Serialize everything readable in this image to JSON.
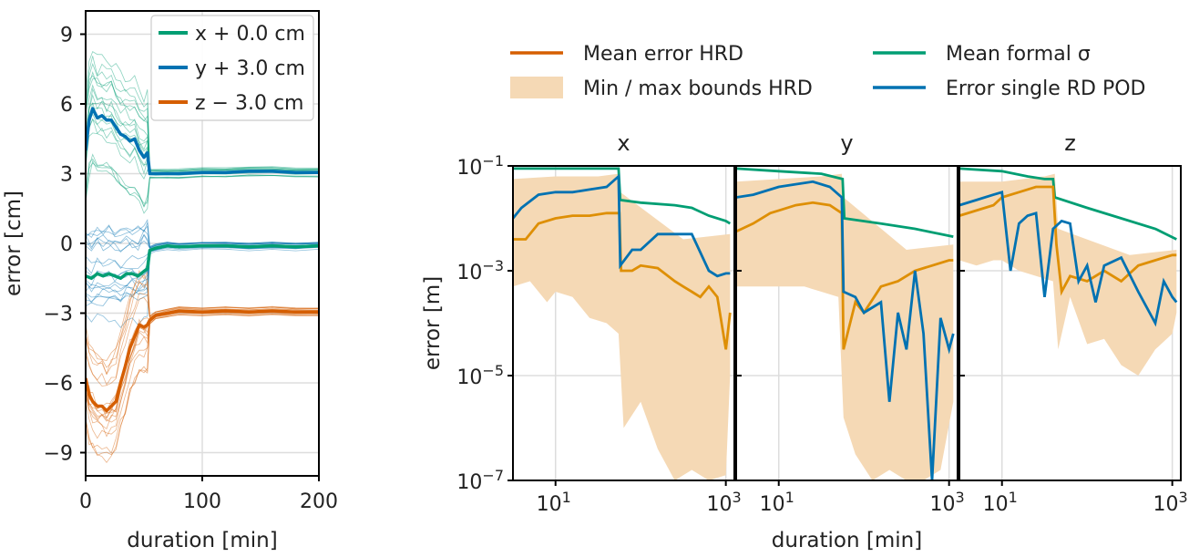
{
  "colors": {
    "green": "#009e73",
    "blue": "#0072b2",
    "orange": "#d55e00",
    "orange_mid": "#de8f05",
    "band": "#f5d9b5",
    "grid": "#dddddd",
    "axis": "#000000"
  },
  "chart_data": [
    {
      "type": "line",
      "id": "left",
      "xlabel": "duration [min]",
      "ylabel": "error [cm]",
      "xlim": [
        0,
        200
      ],
      "ylim": [
        -10,
        10
      ],
      "xticks": [
        0,
        100,
        200
      ],
      "xtick_labels": [
        "0",
        "100",
        "200"
      ],
      "yticks": [
        -9,
        -6,
        -3,
        0,
        3,
        6,
        9
      ],
      "ytick_labels": [
        "−9",
        "−6",
        "−3",
        "0",
        "3",
        "6",
        "9"
      ],
      "grid": true,
      "legend_position": "top-right",
      "series": [
        {
          "name": "x + 0.0 cm",
          "color": "#009e73",
          "x": [
            0,
            5,
            10,
            15,
            20,
            25,
            30,
            35,
            40,
            45,
            50,
            53,
            55,
            60,
            70,
            80,
            100,
            120,
            140,
            160,
            180,
            200
          ],
          "y": [
            -1.4,
            -1.5,
            -1.3,
            -1.4,
            -1.3,
            -1.4,
            -1.5,
            -1.3,
            -1.3,
            -1.4,
            -1.2,
            -1.1,
            -0.3,
            -0.2,
            -0.1,
            -0.15,
            -0.1,
            -0.1,
            -0.15,
            -0.1,
            -0.15,
            -0.1
          ]
        },
        {
          "name": "y + 3.0 cm",
          "color": "#0072b2",
          "x": [
            0,
            3,
            6,
            10,
            14,
            18,
            22,
            26,
            30,
            34,
            38,
            42,
            46,
            50,
            53,
            55,
            60,
            70,
            80,
            100,
            120,
            140,
            160,
            180,
            200
          ],
          "y": [
            4.0,
            5.3,
            5.8,
            5.4,
            5.5,
            5.3,
            5.3,
            5.0,
            4.7,
            4.6,
            4.4,
            4.5,
            4.0,
            3.7,
            3.9,
            3.0,
            3.0,
            3.0,
            3.0,
            3.05,
            3.05,
            3.1,
            3.1,
            3.05,
            3.05
          ]
        },
        {
          "name": "z − 3.0 cm",
          "color": "#d55e00",
          "x": [
            0,
            3,
            6,
            10,
            14,
            18,
            22,
            26,
            30,
            34,
            38,
            42,
            46,
            50,
            53,
            55,
            60,
            70,
            80,
            100,
            120,
            140,
            160,
            180,
            200
          ],
          "y": [
            -5.8,
            -6.5,
            -6.8,
            -7.0,
            -7.0,
            -7.2,
            -7.0,
            -6.8,
            -6.0,
            -5.3,
            -4.5,
            -4.0,
            -3.5,
            -3.6,
            -3.5,
            -3.3,
            -3.1,
            -3.0,
            -2.9,
            -2.95,
            -2.9,
            -2.95,
            -2.9,
            -2.95,
            -2.95
          ]
        }
      ],
      "ensemble": [
        {
          "color": "#0072b2",
          "spread": 2.0
        },
        {
          "color": "#009e73",
          "spread": 2.6
        },
        {
          "color": "#d55e00",
          "spread": 2.2
        }
      ]
    },
    {
      "type": "line",
      "id": "right",
      "xlabel": "duration [min]",
      "ylabel": "error [m]",
      "xscale": "log",
      "yscale": "log",
      "ylim_exp": [
        -7,
        -1
      ],
      "xlim_exp": [
        0.5,
        3.1
      ],
      "yticks_exp": [
        -7,
        -5,
        -3,
        -1
      ],
      "xticks_exp": [
        1,
        3
      ],
      "grid": true,
      "legend": [
        {
          "label": "Mean error HRD",
          "kind": "line",
          "color": "#d55e00"
        },
        {
          "label": "Min / max bounds HRD",
          "kind": "band",
          "color": "#f5d9b5"
        },
        {
          "label": "Mean formal σ",
          "kind": "line",
          "color": "#009e73"
        },
        {
          "label": "Error single RD POD",
          "kind": "line",
          "color": "#0072b2"
        }
      ],
      "panels": [
        {
          "title": "x",
          "mean_error": {
            "lx": [
              0.5,
              0.65,
              0.8,
              1.0,
              1.2,
              1.4,
              1.6,
              1.75,
              1.77,
              1.9,
              2.0,
              2.2,
              2.4,
              2.5,
              2.6,
              2.7,
              2.8,
              2.9,
              3.0,
              3.05
            ],
            "ly": [
              -2.4,
              -2.4,
              -2.1,
              -2.0,
              -1.95,
              -1.95,
              -1.9,
              -1.9,
              -3.0,
              -3.0,
              -2.9,
              -2.95,
              -3.2,
              -3.3,
              -3.4,
              -3.5,
              -3.3,
              -3.5,
              -4.5,
              -3.8
            ]
          },
          "formal": {
            "lx": [
              0.5,
              1.0,
              1.5,
              1.74,
              1.76,
              2.0,
              2.4,
              2.6,
              2.8,
              3.0,
              3.05
            ],
            "ly": [
              -1.05,
              -1.05,
              -1.05,
              -1.05,
              -1.65,
              -1.7,
              -1.75,
              -1.8,
              -1.95,
              -2.05,
              -2.1
            ]
          },
          "single": {
            "lx": [
              0.5,
              0.6,
              0.8,
              1.0,
              1.2,
              1.4,
              1.6,
              1.74,
              1.76,
              1.9,
              2.0,
              2.2,
              2.4,
              2.6,
              2.8,
              2.9,
              3.0,
              3.05
            ],
            "ly": [
              -2.0,
              -1.8,
              -1.55,
              -1.5,
              -1.5,
              -1.45,
              -1.4,
              -1.2,
              -2.9,
              -2.6,
              -2.6,
              -2.3,
              -2.3,
              -2.3,
              -3.0,
              -3.1,
              -3.05,
              -3.05
            ]
          },
          "band_upper": {
            "lx": [
              0.5,
              1.0,
              1.5,
              1.74,
              1.76,
              2.5,
              3.05
            ],
            "ly": [
              -1.25,
              -1.2,
              -1.2,
              -1.15,
              -1.5,
              -2.4,
              -2.3
            ]
          },
          "band_lower": {
            "lx": [
              0.5,
              0.7,
              0.9,
              1.0,
              1.2,
              1.4,
              1.6,
              1.74,
              1.8,
              2.0,
              2.2,
              2.4,
              2.6,
              2.8,
              3.0,
              3.05
            ],
            "ly": [
              -3.3,
              -3.2,
              -3.6,
              -3.4,
              -3.5,
              -3.9,
              -4.0,
              -4.2,
              -6.0,
              -5.5,
              -6.4,
              -7.0,
              -6.8,
              -7.0,
              -6.9,
              -5.0
            ]
          }
        },
        {
          "title": "y",
          "mean_error": {
            "lx": [
              0.5,
              0.7,
              0.9,
              1.0,
              1.2,
              1.4,
              1.6,
              1.74,
              1.76,
              1.9,
              2.0,
              2.2,
              2.4,
              2.6,
              2.8,
              3.0,
              3.05
            ],
            "ly": [
              -2.25,
              -2.1,
              -1.9,
              -1.85,
              -1.75,
              -1.7,
              -1.75,
              -1.9,
              -4.5,
              -3.6,
              -3.8,
              -3.3,
              -3.2,
              -3.0,
              -2.9,
              -2.8,
              -2.8
            ]
          },
          "formal": {
            "lx": [
              0.5,
              1.0,
              1.5,
              1.75,
              1.77,
              2.2,
              2.6,
              2.9,
              3.05
            ],
            "ly": [
              -1.05,
              -1.1,
              -1.15,
              -1.25,
              -2.0,
              -2.1,
              -2.2,
              -2.3,
              -2.35
            ]
          },
          "single": {
            "lx": [
              0.5,
              0.7,
              0.9,
              1.0,
              1.2,
              1.4,
              1.6,
              1.74,
              1.76,
              1.9,
              2.0,
              2.2,
              2.3,
              2.4,
              2.5,
              2.6,
              2.7,
              2.8,
              2.9,
              3.0,
              3.05
            ],
            "ly": [
              -1.6,
              -1.55,
              -1.45,
              -1.4,
              -1.35,
              -1.3,
              -1.4,
              -1.6,
              -3.4,
              -3.5,
              -3.8,
              -3.6,
              -5.5,
              -3.8,
              -4.5,
              -3.0,
              -4.2,
              -7.0,
              -3.9,
              -4.5,
              -4.2
            ]
          },
          "band_upper": {
            "lx": [
              0.5,
              1.0,
              1.5,
              1.74,
              1.76,
              2.5,
              3.05
            ],
            "ly": [
              -1.3,
              -1.25,
              -1.2,
              -1.15,
              -1.6,
              -2.6,
              -2.5
            ]
          },
          "band_lower": {
            "lx": [
              0.5,
              1.0,
              1.3,
              1.5,
              1.7,
              1.76,
              1.9,
              2.1,
              2.3,
              2.5,
              2.7,
              2.9,
              3.05
            ],
            "ly": [
              -3.3,
              -3.3,
              -3.3,
              -3.4,
              -3.5,
              -5.8,
              -6.5,
              -7.0,
              -6.8,
              -7.0,
              -7.0,
              -6.8,
              -5.5
            ]
          }
        },
        {
          "title": "z",
          "mean_error": {
            "lx": [
              0.5,
              0.7,
              0.9,
              1.0,
              1.2,
              1.4,
              1.5,
              1.6,
              1.64,
              1.7,
              1.8,
              2.0,
              2.2,
              2.4,
              2.6,
              2.8,
              3.0,
              3.05
            ],
            "ly": [
              -1.95,
              -1.85,
              -1.75,
              -1.6,
              -1.5,
              -1.4,
              -1.4,
              -1.4,
              -2.5,
              -3.4,
              -3.1,
              -3.2,
              -3.0,
              -3.2,
              -2.9,
              -2.8,
              -2.7,
              -2.7
            ]
          },
          "formal": {
            "lx": [
              0.5,
              1.0,
              1.3,
              1.5,
              1.6,
              1.62,
              2.0,
              2.4,
              2.8,
              3.05
            ],
            "ly": [
              -1.05,
              -1.1,
              -1.2,
              -1.25,
              -1.25,
              -1.6,
              -1.8,
              -2.0,
              -2.2,
              -2.4
            ]
          },
          "single": {
            "lx": [
              0.5,
              0.7,
              0.9,
              1.0,
              1.1,
              1.2,
              1.3,
              1.4,
              1.5,
              1.6,
              1.7,
              1.8,
              1.9,
              2.0,
              2.1,
              2.2,
              2.4,
              2.6,
              2.8,
              2.9,
              3.0,
              3.05
            ],
            "ly": [
              -1.75,
              -1.65,
              -1.55,
              -1.5,
              -3.0,
              -2.1,
              -1.95,
              -1.9,
              -3.5,
              -2.2,
              -2.05,
              -2.1,
              -3.2,
              -2.9,
              -3.6,
              -2.9,
              -2.75,
              -3.4,
              -4.0,
              -3.2,
              -3.5,
              -3.6
            ]
          },
          "band_upper": {
            "lx": [
              0.5,
              1.0,
              1.5,
              1.62,
              1.66,
              2.5,
              3.05
            ],
            "ly": [
              -1.3,
              -1.3,
              -1.2,
              -1.15,
              -2.2,
              -2.7,
              -2.6
            ]
          },
          "band_lower": {
            "lx": [
              0.5,
              0.7,
              0.9,
              1.0,
              1.2,
              1.4,
              1.6,
              1.66,
              1.8,
              2.0,
              2.2,
              2.4,
              2.6,
              2.8,
              3.0,
              3.05
            ],
            "ly": [
              -2.8,
              -2.9,
              -2.8,
              -2.8,
              -3.0,
              -3.1,
              -3.2,
              -4.5,
              -3.5,
              -4.4,
              -4.3,
              -4.8,
              -5.0,
              -4.5,
              -4.2,
              -3.8
            ]
          }
        }
      ]
    }
  ]
}
